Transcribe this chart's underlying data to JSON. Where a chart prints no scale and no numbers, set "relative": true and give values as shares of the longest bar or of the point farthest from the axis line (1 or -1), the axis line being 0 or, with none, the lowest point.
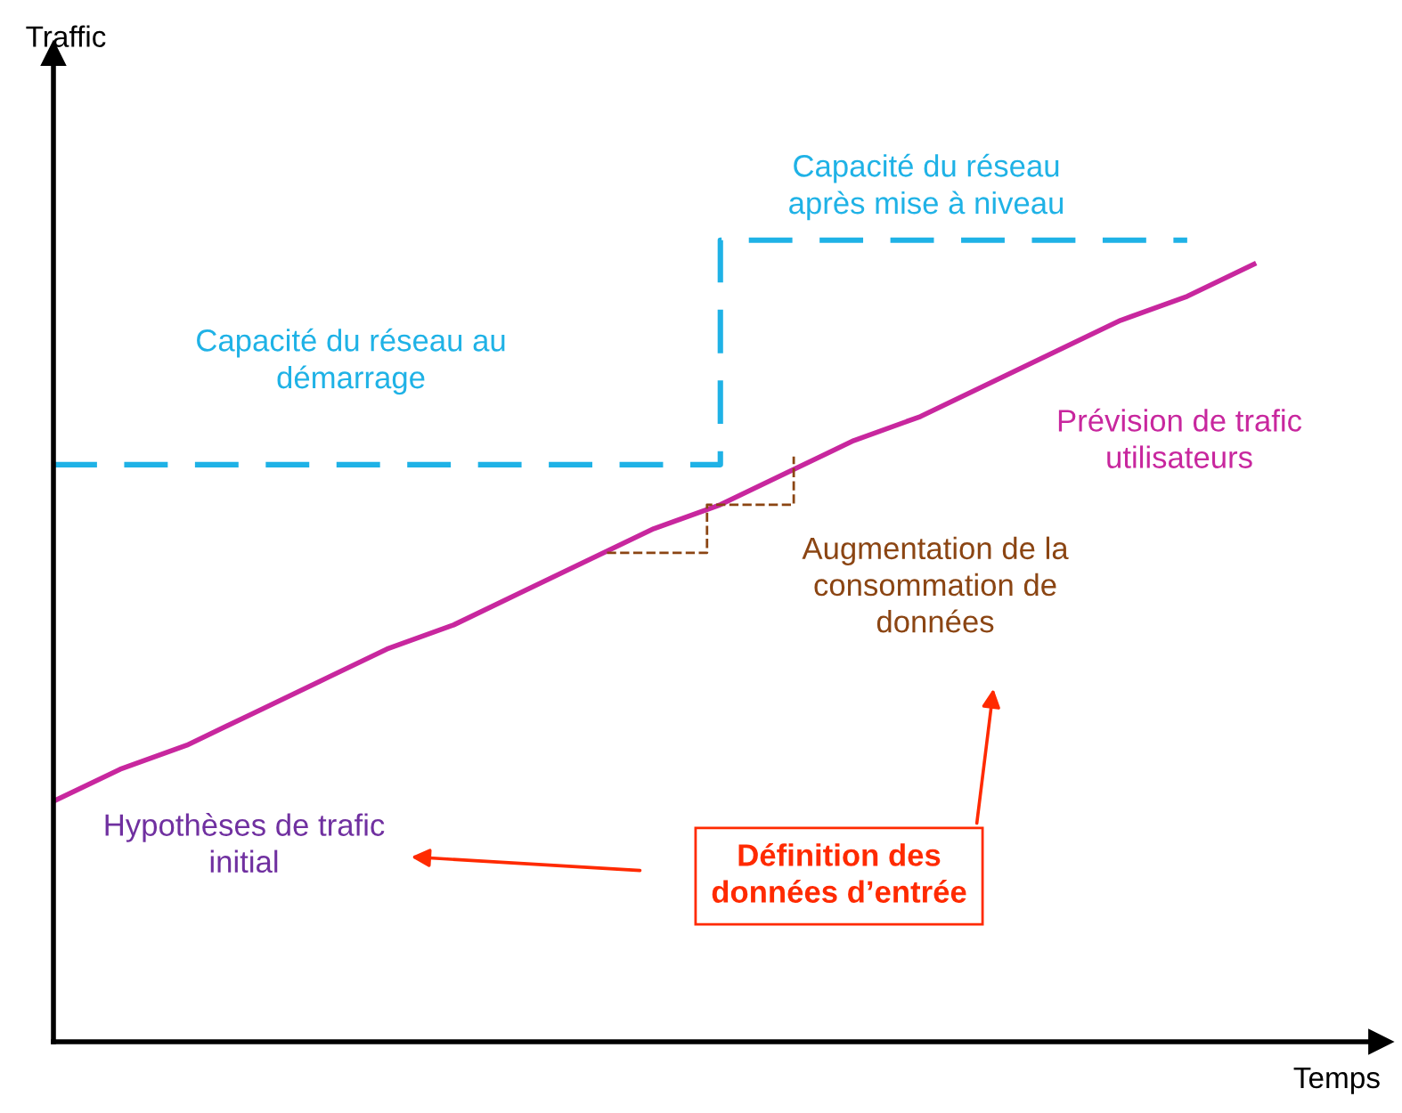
{
  "chart_data": {
    "type": "line",
    "relative": true,
    "xlabel": "Temps",
    "categories": [
      null,
      null,
      null,
      null,
      null,
      null,
      null,
      null,
      null,
      null,
      null,
      null,
      null,
      null,
      null,
      null,
      null,
      null,
      null
    ],
    "series": [
      {
        "color": "#c8279e",
        "line_style": "solid",
        "values": [
          0.3,
          0.34,
          0.37,
          0.41,
          0.45,
          0.49,
          0.52,
          0.56,
          0.6,
          0.64,
          0.67,
          0.71,
          0.75,
          0.78,
          0.82,
          0.86,
          0.9,
          0.93,
          0.97
        ]
      },
      {
        "type": "step",
        "color": "#1fb2e6",
        "line_style": "dashed",
        "values": [
          0.72,
          0.72,
          0.72,
          0.72,
          0.72,
          0.72,
          0.72,
          0.72,
          0.72,
          0.72,
          0.72,
          1.0,
          1.0,
          1.0,
          1.0,
          1.0,
          1.0,
          1.0,
          null
        ]
      }
    ],
    "annotations": [
      "Capacité du réseau au\ndémarrage",
      "Capacité du réseau\naprès mise à niveau",
      "Prévision de trafic\nutilisateurs",
      "Augmentation de la\nconsommation de\ndonnées",
      "Hypothèses de trafic\ninitial",
      "Définition des\ndonnées d’entrée",
      "Traffic"
    ],
    "legend": false
  }
}
